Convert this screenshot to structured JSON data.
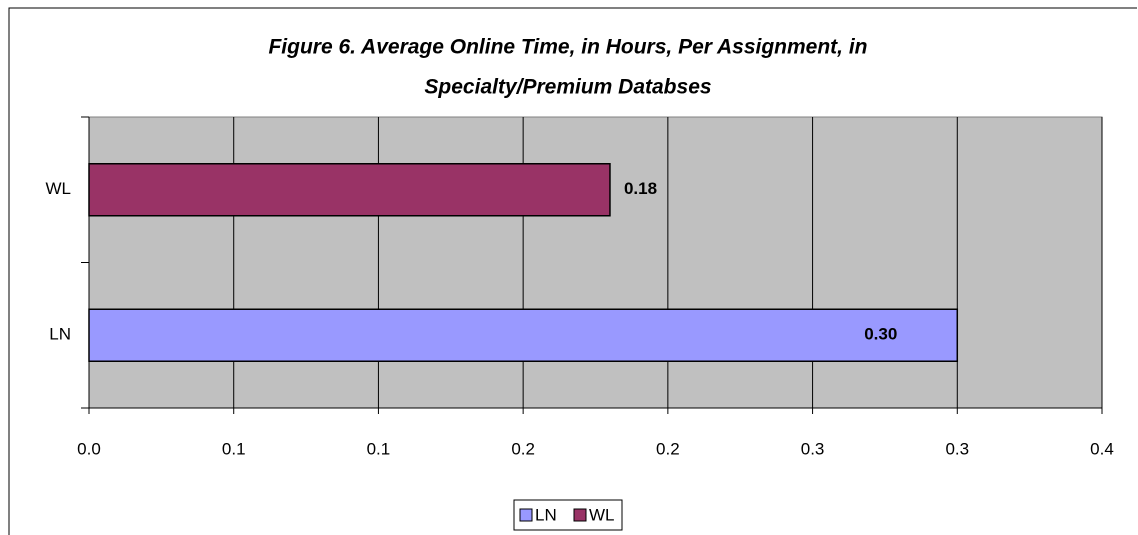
{
  "chart_data": {
    "type": "hbar",
    "title": [
      "Figure 6.  Average Online Time, in Hours, Per Assignment, in",
      "Specialty/Premium Databses"
    ],
    "categories": [
      "LN",
      "WL"
    ],
    "series": [
      {
        "name": "LN",
        "color": "#9999ff",
        "values": [
          0.3,
          null
        ],
        "value_labels": [
          "0.30",
          null
        ]
      },
      {
        "name": "WL",
        "color": "#993366",
        "values": [
          null,
          0.18
        ]
      }
    ],
    "xlim": [
      0,
      0.35
    ],
    "xticks": [
      {
        "value": 0,
        "label": "0.0"
      },
      {
        "value": 0.05,
        "label": "0.1"
      },
      0.1,
      {
        "value": 0.15,
        "label": "0.2"
      },
      0.2,
      {
        "value": 0.25,
        "label": "0.3"
      },
      0.3,
      {
        "value": 0.35,
        "label": "0.4"
      }
    ],
    "grid": true,
    "legend": "bottom"
  }
}
